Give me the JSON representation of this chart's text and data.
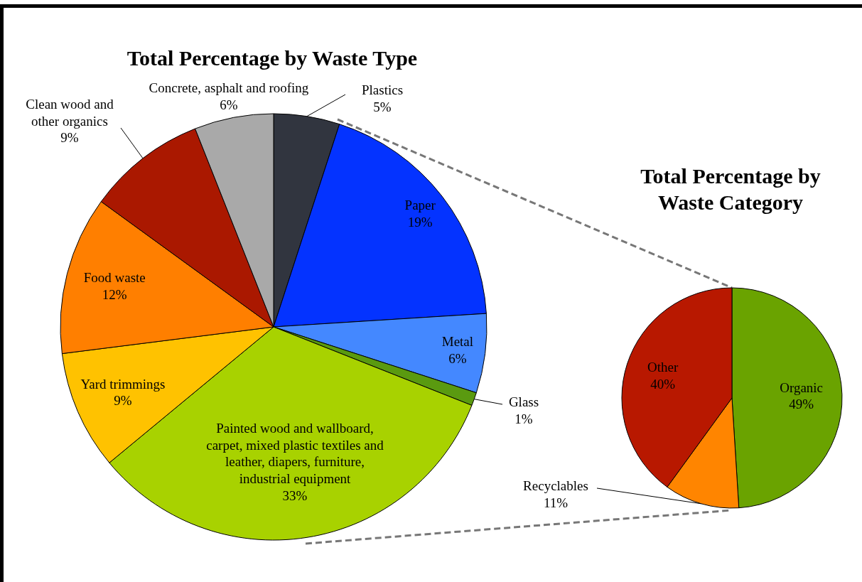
{
  "chart_data": [
    {
      "type": "pie",
      "title": "Total Percentage by Waste Type",
      "categories": [
        "Plastics",
        "Paper",
        "Metal",
        "Glass",
        "Painted wood and wallboard, carpet, mixed plastic textiles and leather, diapers, furniture, industrial equipment",
        "Yard trimmings",
        "Food waste",
        "Clean wood and other organics",
        "Concrete, asphalt and roofing"
      ],
      "values": [
        5,
        19,
        6,
        1,
        33,
        9,
        12,
        9,
        6
      ],
      "value_labels": [
        "5%",
        "19%",
        "6%",
        "1%",
        "33%",
        "9%",
        "12%",
        "9%",
        "6%"
      ],
      "colors": [
        "#31353f",
        "#0433ff",
        "#4488ff",
        "#5a9a10",
        "#a8d200",
        "#ffc200",
        "#ff7f00",
        "#aa1800",
        "#a9a9a9"
      ]
    },
    {
      "type": "pie",
      "title": "Total Percentage by Waste Category",
      "categories": [
        "Organic",
        "Recyclables",
        "Other"
      ],
      "values": [
        49,
        11,
        40
      ],
      "value_labels": [
        "49%",
        "11%",
        "40%"
      ],
      "colors": [
        "#6aa300",
        "#ff8500",
        "#b81800"
      ]
    }
  ]
}
